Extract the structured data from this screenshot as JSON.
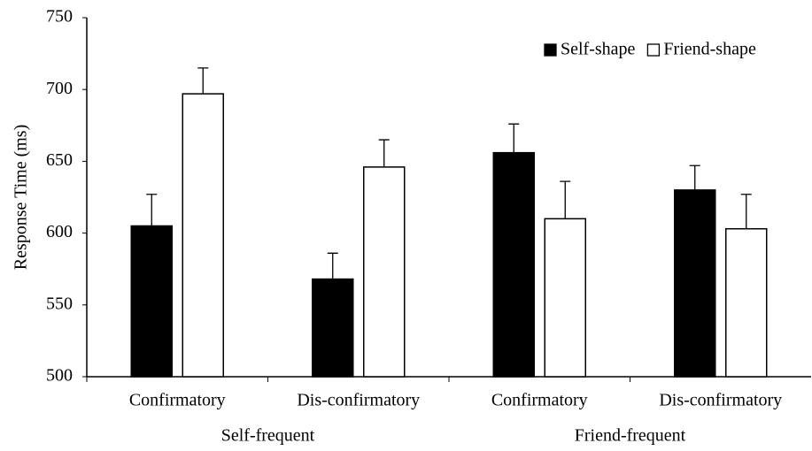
{
  "chart_data": {
    "type": "bar",
    "ylabel": "Response Time (ms)",
    "groups": [
      {
        "name": "Self-frequent",
        "categories": [
          "Confirmatory",
          "Dis-confirmatory"
        ]
      },
      {
        "name": "Friend-frequent",
        "categories": [
          "Confirmatory",
          "Dis-confirmatory"
        ]
      }
    ],
    "series": [
      {
        "name": "Self-shape",
        "color": "#000000",
        "values": [
          605,
          568,
          656,
          630
        ],
        "errors": [
          22,
          18,
          20,
          17
        ]
      },
      {
        "name": "Friend-shape",
        "color": "#ffffff",
        "values": [
          697,
          646,
          610,
          603
        ],
        "errors": [
          18,
          19,
          26,
          24
        ]
      }
    ],
    "ylim": [
      500,
      750
    ],
    "yticks": [
      500,
      550,
      600,
      650,
      700,
      750
    ],
    "legend": "upper right",
    "grid": false
  }
}
